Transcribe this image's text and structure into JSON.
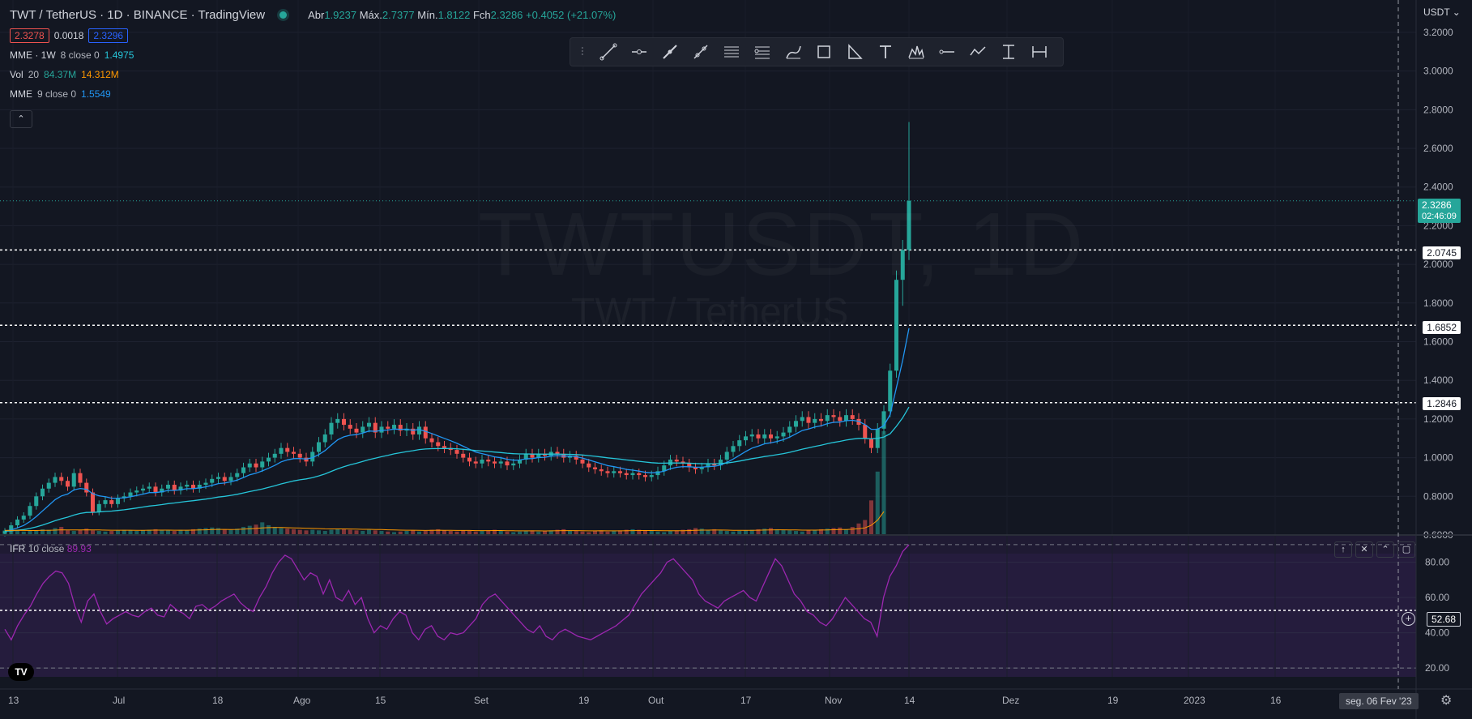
{
  "header": {
    "symbol_title": "TWT / TetherUS · 1D · BINANCE · TradingView",
    "open_label": "Abr",
    "open": "1.9237",
    "high_label": "Máx.",
    "high": "2.7377",
    "low_label": "Mín.",
    "low": "1.8122",
    "close_label": "Fch",
    "close": "2.3286",
    "change": "+0.4052 (+21.07%)",
    "bid": "2.3278",
    "spread": "0.0018",
    "ask": "2.3296"
  },
  "indicators": [
    {
      "name": "MME · 1W",
      "params": "8 close 0",
      "value": "1.4975",
      "color": "#26c6da"
    },
    {
      "name": "Vol",
      "params": "20",
      "value": "84.37M",
      "value2": "14.312M",
      "color": "#26a69a",
      "color2": "#ff9800"
    },
    {
      "name": "MME",
      "params": "9 close 0",
      "value": "1.5549",
      "color": "#2196f3"
    }
  ],
  "collapse_icon": "chevron-up-icon",
  "watermark": {
    "ticker": "TWTUSDT, 1D",
    "pair": "TWT / TetherUS"
  },
  "currency_label": "USDT",
  "toolbar_icons": [
    "trend-line-icon",
    "horizontal-ray-icon",
    "arrow-icon",
    "pitchfork-icon",
    "parallel-channel-icon",
    "fib-icon",
    "brush-icon",
    "rectangle-icon",
    "triangle-icon",
    "text-icon",
    "pattern-icon",
    "horizontal-line-icon",
    "path-icon",
    "price-range-icon",
    "date-range-icon"
  ],
  "rsi": {
    "name": "IFR",
    "params": "10 close",
    "value": "89.93"
  },
  "price_tags": {
    "last": "2.3286",
    "countdown": "02:46:09",
    "level1": "2.0745",
    "level2": "1.6852",
    "level3": "1.2846",
    "rsi_cursor": "52.68"
  },
  "date_hover": "seg. 06 Fev '23",
  "colors": {
    "up": "#26a69a",
    "down": "#ef5350",
    "background": "#131722",
    "ema_short": "#2196f3",
    "ema_long": "#26c6da",
    "rsi": "#9c27b0"
  },
  "chart_data": {
    "type": "candlestick",
    "title": "TWT / TetherUS · 1D · BINANCE",
    "price_axis": {
      "ticks": [
        "3.2000",
        "3.0000",
        "2.8000",
        "2.6000",
        "2.4000",
        "2.2000",
        "2.0000",
        "1.8000",
        "1.6000",
        "1.4000",
        "1.2000",
        "1.0000",
        "0.8000",
        "0.6000"
      ],
      "ylim": [
        0.6,
        3.25
      ]
    },
    "horizontal_levels": [
      2.0745,
      1.6852,
      1.2846
    ],
    "time_axis": {
      "ticks": [
        "13",
        "Jul",
        "18",
        "Ago",
        "15",
        "Set",
        "19",
        "Out",
        "17",
        "Nov",
        "14",
        "Dez",
        "19",
        "2023",
        "16"
      ]
    },
    "close_series_approx": [
      0.62,
      0.65,
      0.68,
      0.7,
      0.75,
      0.8,
      0.84,
      0.87,
      0.9,
      0.88,
      0.85,
      0.92,
      0.87,
      0.82,
      0.72,
      0.76,
      0.78,
      0.76,
      0.79,
      0.8,
      0.82,
      0.83,
      0.84,
      0.85,
      0.82,
      0.84,
      0.86,
      0.83,
      0.85,
      0.86,
      0.84,
      0.86,
      0.87,
      0.89,
      0.9,
      0.88,
      0.9,
      0.92,
      0.95,
      0.97,
      0.95,
      0.98,
      1.0,
      1.02,
      1.05,
      1.03,
      1.02,
      1.0,
      0.98,
      1.03,
      1.08,
      1.12,
      1.18,
      1.2,
      1.17,
      1.15,
      1.13,
      1.16,
      1.18,
      1.13,
      1.16,
      1.15,
      1.17,
      1.14,
      1.15,
      1.12,
      1.16,
      1.1,
      1.08,
      1.06,
      1.05,
      1.04,
      1.02,
      1.0,
      0.98,
      0.97,
      0.99,
      0.98,
      0.97,
      0.98,
      0.96,
      0.97,
      0.99,
      1.02,
      1.0,
      1.02,
      1.01,
      1.03,
      1.02,
      1.0,
      1.01,
      0.99,
      0.97,
      0.95,
      0.94,
      0.93,
      0.92,
      0.93,
      0.92,
      0.91,
      0.92,
      0.91,
      0.9,
      0.91,
      0.93,
      0.96,
      0.99,
      0.98,
      0.97,
      0.95,
      0.94,
      0.95,
      0.97,
      0.96,
      0.99,
      1.03,
      1.06,
      1.09,
      1.11,
      1.12,
      1.1,
      1.12,
      1.1,
      1.11,
      1.13,
      1.16,
      1.19,
      1.21,
      1.18,
      1.2,
      1.19,
      1.22,
      1.21,
      1.19,
      1.22,
      1.2,
      1.17,
      1.1,
      1.05,
      1.15,
      1.24,
      1.45,
      1.92,
      2.0745,
      2.3286
    ],
    "volume_series_approx": [
      8,
      7,
      9,
      6,
      7,
      8,
      10,
      9,
      12,
      14,
      8,
      7,
      9,
      11,
      8,
      7,
      6,
      7,
      8,
      9,
      8,
      7,
      8,
      9,
      10,
      9,
      8,
      7,
      9,
      8,
      10,
      11,
      12,
      13,
      12,
      10,
      9,
      11,
      14,
      16,
      18,
      22,
      17,
      14,
      12,
      11,
      10,
      9,
      8,
      9,
      8,
      7,
      9,
      10,
      11,
      9,
      8,
      7,
      9,
      8,
      7,
      6,
      5,
      6,
      7,
      8,
      6,
      7,
      9,
      10,
      8,
      7,
      6,
      8,
      7,
      6,
      7,
      8,
      9,
      7,
      6,
      5,
      6,
      7,
      8,
      6,
      7,
      8,
      9,
      10,
      8,
      7,
      6,
      5,
      7,
      8,
      6,
      7,
      8,
      9,
      10,
      9,
      8,
      7,
      6,
      5,
      7,
      8,
      9,
      10,
      12,
      11,
      9,
      10,
      8,
      7,
      6,
      7,
      8,
      9,
      10,
      11,
      12,
      10,
      9,
      8,
      7,
      6,
      8,
      9,
      10,
      11,
      12,
      13,
      10,
      14,
      20,
      26,
      60,
      110,
      180
    ],
    "rsi_series_approx": [
      42,
      36,
      44,
      50,
      55,
      62,
      68,
      72,
      75,
      74,
      68,
      55,
      46,
      58,
      62,
      52,
      45,
      48,
      50,
      52,
      50,
      49,
      52,
      54,
      50,
      49,
      56,
      53,
      51,
      48,
      55,
      56,
      53,
      55,
      58,
      60,
      62,
      57,
      54,
      52,
      60,
      66,
      74,
      80,
      84,
      82,
      76,
      70,
      74,
      72,
      62,
      70,
      60,
      58,
      64,
      56,
      60,
      48,
      40,
      44,
      42,
      48,
      52,
      50,
      40,
      36,
      42,
      44,
      38,
      36,
      40,
      39,
      40,
      44,
      48,
      56,
      60,
      62,
      58,
      54,
      50,
      46,
      42,
      40,
      44,
      38,
      36,
      40,
      42,
      40,
      38,
      37,
      36,
      38,
      40,
      42,
      44,
      47,
      50,
      56,
      62,
      66,
      70,
      74,
      80,
      82,
      78,
      74,
      70,
      62,
      58,
      56,
      54,
      58,
      60,
      62,
      64,
      60,
      58,
      66,
      74,
      82,
      78,
      70,
      62,
      58,
      52,
      50,
      46,
      44,
      48,
      54,
      60,
      56,
      52,
      48,
      46,
      38,
      60,
      72,
      78,
      86,
      89.93
    ]
  }
}
